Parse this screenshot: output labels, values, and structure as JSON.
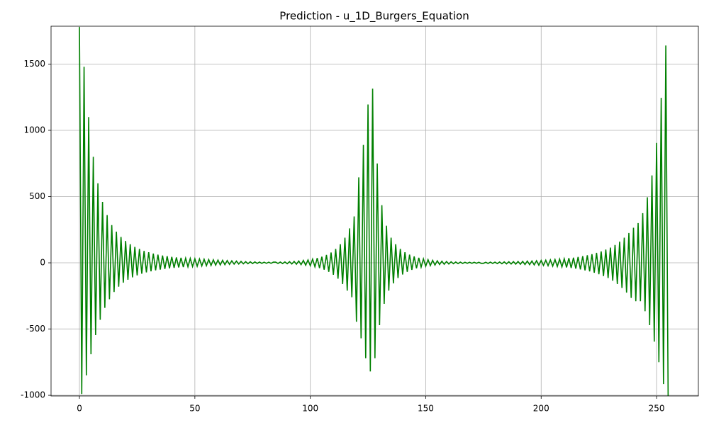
{
  "chart_data": {
    "type": "line",
    "title": "Prediction - u_1D_Burgers_Equation",
    "x": [
      0,
      1,
      2,
      3,
      4,
      5,
      6,
      7,
      8,
      9,
      10,
      11,
      12,
      13,
      14,
      15,
      16,
      17,
      18,
      19,
      20,
      21,
      22,
      23,
      24,
      25,
      26,
      27,
      28,
      29,
      30,
      31,
      32,
      33,
      34,
      35,
      36,
      37,
      38,
      39,
      40,
      41,
      42,
      43,
      44,
      45,
      46,
      47,
      48,
      49,
      50,
      51,
      52,
      53,
      54,
      55,
      56,
      57,
      58,
      59,
      60,
      61,
      62,
      63,
      64,
      65,
      66,
      67,
      68,
      69,
      70,
      71,
      72,
      73,
      74,
      75,
      76,
      77,
      78,
      79,
      80,
      81,
      82,
      83,
      84,
      85,
      86,
      87,
      88,
      89,
      90,
      91,
      92,
      93,
      94,
      95,
      96,
      97,
      98,
      99,
      100,
      101,
      102,
      103,
      104,
      105,
      106,
      107,
      108,
      109,
      110,
      111,
      112,
      113,
      114,
      115,
      116,
      117,
      118,
      119,
      120,
      121,
      122,
      123,
      124,
      125,
      126,
      127,
      128,
      129,
      130,
      131,
      132,
      133,
      134,
      135,
      136,
      137,
      138,
      139,
      140,
      141,
      142,
      143,
      144,
      145,
      146,
      147,
      148,
      149,
      150,
      151,
      152,
      153,
      154,
      155,
      156,
      157,
      158,
      159,
      160,
      161,
      162,
      163,
      164,
      165,
      166,
      167,
      168,
      169,
      170,
      171,
      172,
      173,
      174,
      175,
      176,
      177,
      178,
      179,
      180,
      181,
      182,
      183,
      184,
      185,
      186,
      187,
      188,
      189,
      190,
      191,
      192,
      193,
      194,
      195,
      196,
      197,
      198,
      199,
      200,
      201,
      202,
      203,
      204,
      205,
      206,
      207,
      208,
      209,
      210,
      211,
      212,
      213,
      214,
      215,
      216,
      217,
      218,
      219,
      220,
      221,
      222,
      223,
      224,
      225,
      226,
      227,
      228,
      229,
      230,
      231,
      232,
      233,
      234,
      235,
      236,
      237,
      238,
      239,
      240,
      241,
      242,
      243,
      244,
      245,
      246,
      247,
      248,
      249,
      250,
      251,
      252,
      253,
      254,
      255
    ],
    "series": [
      {
        "color": "#008000",
        "values": [
          1780,
          -990,
          1480,
          -850,
          1100,
          -690,
          800,
          -545,
          600,
          -430,
          460,
          -340,
          360,
          -275,
          285,
          -220,
          235,
          -180,
          195,
          -150,
          165,
          -128,
          140,
          -110,
          120,
          -95,
          105,
          -82,
          90,
          -72,
          80,
          -64,
          70,
          -57,
          62,
          -51,
          55,
          -46,
          50,
          -42,
          45,
          -38,
          41,
          -35,
          38,
          -32,
          35,
          -30,
          33,
          -28,
          31,
          -26,
          29,
          -24,
          27,
          -22,
          25,
          -20,
          23,
          -18,
          21,
          -16,
          19,
          -14,
          17,
          -12,
          15,
          -10,
          13,
          -9,
          11,
          -8,
          9,
          -7,
          8,
          -6,
          7,
          -5,
          6,
          -4,
          5,
          -4,
          5,
          -4,
          5,
          5,
          -5,
          6,
          -6,
          7,
          -7,
          9,
          -9,
          11,
          -11,
          14,
          -14,
          18,
          -18,
          22,
          -22,
          28,
          -30,
          36,
          -40,
          46,
          -52,
          60,
          -68,
          78,
          -90,
          105,
          -120,
          140,
          -160,
          190,
          -210,
          260,
          -260,
          350,
          -445,
          645,
          -570,
          890,
          -720,
          1195,
          -820,
          1315,
          -720,
          750,
          -470,
          435,
          -310,
          280,
          -210,
          190,
          -155,
          140,
          -115,
          105,
          -88,
          80,
          -68,
          62,
          -53,
          48,
          -42,
          38,
          -33,
          30,
          -26,
          24,
          -21,
          19,
          -17,
          15,
          -13,
          12,
          -11,
          10,
          -9,
          8,
          -7,
          6,
          -6,
          5,
          -5,
          4,
          -4,
          4,
          -4,
          4,
          -4,
          4,
          -4,
          -4,
          4,
          -5,
          5,
          -5,
          5,
          -6,
          6,
          -7,
          7,
          -8,
          8,
          -9,
          9,
          -10,
          10,
          -11,
          11,
          -13,
          13,
          -14,
          14,
          -16,
          16,
          -18,
          18,
          -20,
          20,
          -22,
          22,
          -25,
          25,
          -28,
          28,
          -31,
          31,
          -35,
          35,
          -39,
          39,
          -44,
          44,
          -50,
          50,
          -57,
          57,
          -65,
          65,
          -75,
          75,
          -86,
          86,
          -100,
          100,
          -115,
          115,
          -135,
          135,
          -160,
          160,
          -190,
          190,
          -225,
          225,
          -265,
          265,
          -290,
          300,
          -290,
          375,
          -365,
          495,
          -470,
          660,
          -595,
          905,
          -750,
          1245,
          -915,
          1640,
          -1005
        ]
      }
    ],
    "xlim": [
      -12.3,
      268.1
    ],
    "ylim": [
      -1005,
      1786
    ],
    "xticks": [
      0,
      50,
      100,
      150,
      200,
      250
    ],
    "yticks": [
      -1000,
      -500,
      0,
      500,
      1000,
      1500
    ],
    "grid": true
  }
}
